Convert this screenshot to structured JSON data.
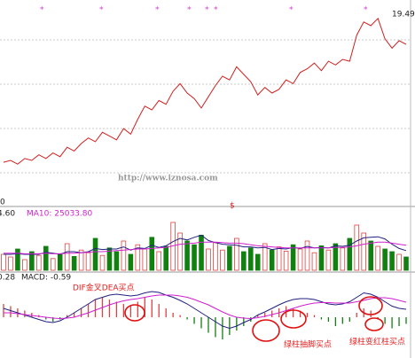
{
  "watermark": "http://www.iznosa.com",
  "chart_data": [
    {
      "type": "line",
      "color": "#d02020",
      "ylim": [
        11,
        20
      ],
      "grid": true,
      "annotation": "19.49",
      "bottom_label": "0",
      "marker": "$",
      "values": [
        11.8,
        11.9,
        11.7,
        12.0,
        11.9,
        12.2,
        12.0,
        12.3,
        12.1,
        12.6,
        12.4,
        12.8,
        13.1,
        12.9,
        13.4,
        13.2,
        13.0,
        13.6,
        13.3,
        14.1,
        14.8,
        14.6,
        15.1,
        14.9,
        15.6,
        16.0,
        15.5,
        15.2,
        14.7,
        15.3,
        15.9,
        16.4,
        16.2,
        16.9,
        16.5,
        16.1,
        15.4,
        15.8,
        15.5,
        15.7,
        16.2,
        16.0,
        16.6,
        16.8,
        17.1,
        16.7,
        17.2,
        17.0,
        17.3,
        17.2,
        18.6,
        19.3,
        19.1,
        19.49,
        18.4,
        17.9,
        18.3,
        18.1
      ]
    },
    {
      "type": "volume",
      "ylim": [
        0,
        100
      ],
      "up_color": "#e04040",
      "down_color": "#108010",
      "top_label": "4.60",
      "title": "MA10: 25033.80",
      "values": [
        30,
        25,
        40,
        20,
        35,
        28,
        45,
        22,
        30,
        50,
        26,
        38,
        33,
        60,
        28,
        42,
        35,
        55,
        30,
        48,
        40,
        62,
        35,
        45,
        90,
        70,
        55,
        48,
        66,
        40,
        52,
        38,
        45,
        60,
        35,
        42,
        30,
        50,
        38,
        44,
        36,
        48,
        40,
        55,
        33,
        46,
        38,
        50,
        42,
        60,
        85,
        70,
        55,
        45,
        40,
        35,
        30,
        25
      ],
      "lines": [
        {
          "color": "#202080",
          "values": [
            30,
            30,
            31,
            30,
            30,
            30,
            34,
            32,
            30,
            35,
            35,
            33,
            35,
            41,
            39,
            40,
            40,
            44,
            38,
            42,
            41,
            47,
            43,
            46,
            54,
            60,
            57,
            62,
            66,
            56,
            52,
            49,
            48,
            47,
            44,
            44,
            42,
            43,
            39,
            41,
            40,
            43,
            41,
            45,
            42,
            43,
            42,
            46,
            45,
            47,
            55,
            61,
            62,
            63,
            59,
            49,
            41,
            37
          ]
        },
        {
          "color": "#d020d0",
          "values": [
            32,
            32,
            32,
            31,
            31,
            31,
            32,
            31,
            31,
            32,
            32,
            33,
            34,
            35,
            35,
            36,
            37,
            38,
            39,
            40,
            40,
            41,
            42,
            43,
            46,
            49,
            50,
            51,
            53,
            53,
            53,
            52,
            51,
            51,
            50,
            48,
            46,
            45,
            44,
            43,
            42,
            42,
            42,
            42,
            42,
            42,
            42,
            43,
            43,
            44,
            46,
            49,
            51,
            53,
            53,
            51,
            49,
            47
          ]
        }
      ]
    },
    {
      "type": "macd",
      "ylim": [
        -0.8,
        0.8
      ],
      "up_color": "#e04040",
      "down_color": "#108010",
      "top_label": "0.28",
      "title": "MACD: -0.59",
      "annotations": [
        "DIF金叉DEA买点",
        "绿柱抽脚买点",
        "绿柱变红柱买点"
      ],
      "values": [
        0.3,
        0.25,
        0.2,
        0.15,
        0.1,
        0.05,
        -0.05,
        -0.1,
        -0.05,
        0.05,
        0.1,
        0.2,
        0.3,
        0.4,
        0.45,
        0.4,
        0.35,
        0.3,
        0.25,
        0.35,
        0.45,
        0.4,
        0.3,
        0.2,
        0.1,
        0.05,
        -0.05,
        -0.15,
        -0.25,
        -0.35,
        -0.45,
        -0.5,
        -0.4,
        -0.3,
        -0.2,
        -0.1,
        0.05,
        0.1,
        0.15,
        0.2,
        0.25,
        0.2,
        0.15,
        0.1,
        0.05,
        -0.05,
        -0.1,
        -0.2,
        -0.15,
        -0.1,
        0.1,
        0.2,
        0.15,
        -0.05,
        -0.15,
        -0.25,
        -0.2,
        -0.15
      ],
      "lines": [
        {
          "color": "#202080",
          "values": [
            0.2,
            0.15,
            0.1,
            0.05,
            0,
            -0.05,
            -0.1,
            -0.12,
            -0.08,
            0,
            0.1,
            0.2,
            0.3,
            0.4,
            0.45,
            0.5,
            0.52,
            0.5,
            0.48,
            0.5,
            0.55,
            0.58,
            0.56,
            0.5,
            0.45,
            0.38,
            0.3,
            0.2,
            0.1,
            0,
            -0.1,
            -0.2,
            -0.25,
            -0.2,
            -0.12,
            -0.05,
            0.05,
            0.12,
            0.2,
            0.28,
            0.35,
            0.4,
            0.42,
            0.42,
            0.4,
            0.35,
            0.3,
            0.28,
            0.3,
            0.35,
            0.45,
            0.55,
            0.52,
            0.45,
            0.35,
            0.25,
            0.2,
            0.18
          ]
        },
        {
          "color": "#d020d0",
          "values": [
            0.1,
            0.1,
            0.08,
            0.06,
            0.04,
            0.02,
            0,
            -0.02,
            -0.03,
            -0.02,
            0,
            0.05,
            0.1,
            0.16,
            0.22,
            0.28,
            0.33,
            0.37,
            0.4,
            0.42,
            0.45,
            0.48,
            0.5,
            0.5,
            0.5,
            0.48,
            0.45,
            0.4,
            0.34,
            0.28,
            0.2,
            0.12,
            0.05,
            0,
            -0.02,
            -0.03,
            -0.01,
            0.02,
            0.06,
            0.1,
            0.15,
            0.2,
            0.25,
            0.29,
            0.32,
            0.33,
            0.33,
            0.32,
            0.32,
            0.32,
            0.35,
            0.38,
            0.42,
            0.44,
            0.44,
            0.42,
            0.38,
            0.34
          ]
        }
      ]
    }
  ]
}
